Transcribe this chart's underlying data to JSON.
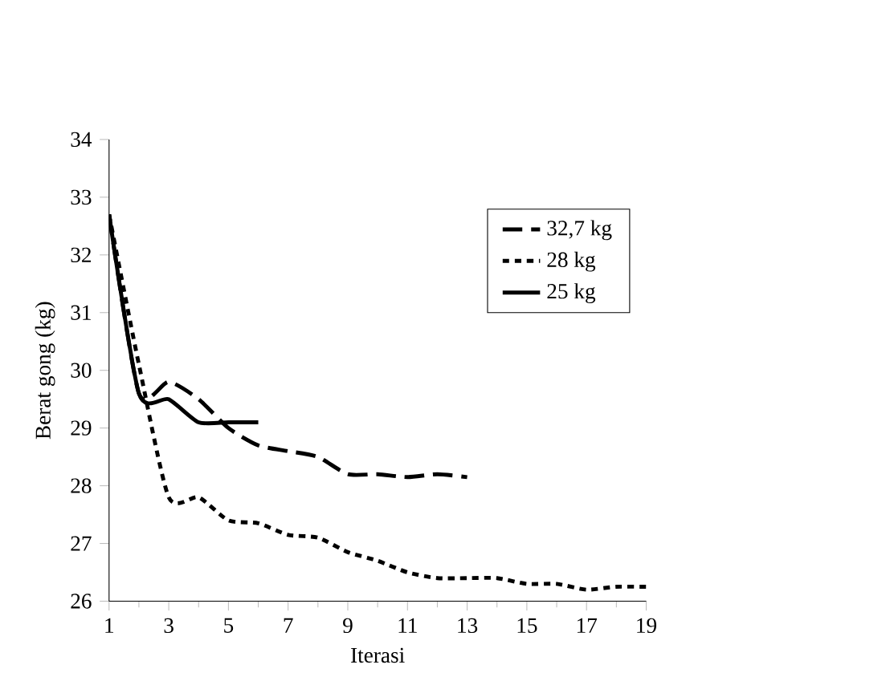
{
  "chart_data": {
    "type": "line",
    "xlabel": "Iterasi",
    "ylabel": "Berat gong (kg)",
    "xlim": [
      1,
      19
    ],
    "xticks": [
      1,
      3,
      5,
      7,
      9,
      11,
      13,
      15,
      17,
      19
    ],
    "ylim": [
      26,
      34
    ],
    "yticks": [
      26,
      27,
      28,
      29,
      30,
      31,
      32,
      33,
      34
    ],
    "legend": "top right",
    "grid": false,
    "marker": "none",
    "series": [
      {
        "name": "32,7 kg",
        "color": "#000000",
        "line_style": "dashed",
        "x": [
          1,
          2,
          3,
          4,
          5,
          6,
          7,
          8,
          9,
          10,
          11,
          12,
          13
        ],
        "values": [
          32.7,
          29.6,
          29.8,
          29.5,
          29.0,
          28.7,
          28.6,
          28.5,
          28.2,
          28.2,
          28.15,
          28.2,
          28.15
        ]
      },
      {
        "name": "28 kg",
        "color": "#000000",
        "line_style": "dotted",
        "x": [
          1,
          2,
          3,
          4,
          5,
          6,
          7,
          8,
          9,
          10,
          11,
          12,
          13,
          14,
          15,
          16,
          17,
          18,
          19
        ],
        "values": [
          32.7,
          30.1,
          27.8,
          27.8,
          27.4,
          27.35,
          27.15,
          27.1,
          26.85,
          26.7,
          26.5,
          26.4,
          26.4,
          26.4,
          26.3,
          26.3,
          26.2,
          26.25,
          26.25
        ]
      },
      {
        "name": "25 kg",
        "color": "#000000",
        "line_style": "solid",
        "x": [
          1,
          2,
          3,
          4,
          5,
          6
        ],
        "values": [
          32.7,
          29.6,
          29.5,
          29.1,
          29.1,
          29.1
        ]
      }
    ]
  }
}
